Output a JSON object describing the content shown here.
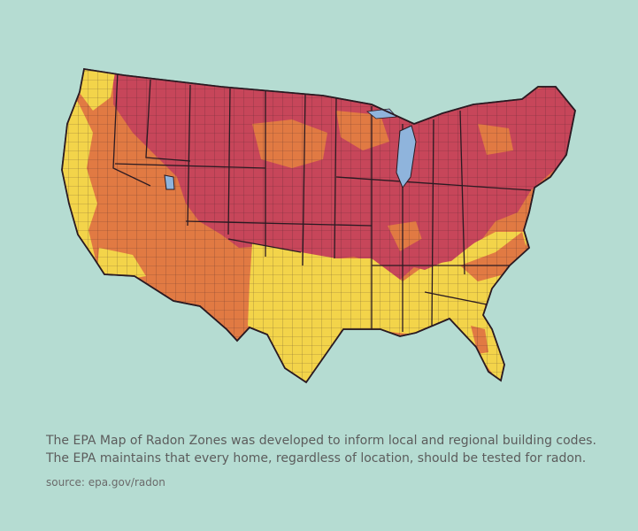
{
  "map": {
    "zone_colors": {
      "zone1": "#c7465a",
      "zone2": "#e17a43",
      "zone3": "#f3d44a",
      "border": "#2a1a22",
      "water": "#8fb4dc",
      "background": "#b5dcd2"
    }
  },
  "caption": {
    "line1": "The EPA Map of Radon Zones was developed to inform local and regional building codes.",
    "line2": "The EPA maintains that every home, regardless of location, should be tested for radon."
  },
  "source": "source: epa.gov/radon"
}
